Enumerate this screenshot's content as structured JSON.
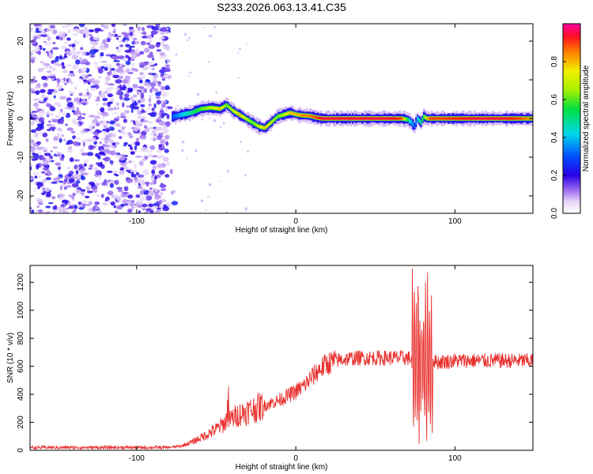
{
  "title": "S233.2026.063.13.41.C35",
  "charts": [
    {
      "type": "heatmap",
      "name": "spectrogram",
      "xlabel": "Height of straight line (km)",
      "ylabel": "Frequency (Hz)",
      "xlim": [
        -167,
        149
      ],
      "ylim": [
        -24.5,
        24.5
      ],
      "xticks": [
        "-100",
        "0",
        "100"
      ],
      "yticks": [
        "20",
        "10",
        "0",
        "-10",
        "-20"
      ],
      "yticks_values": [
        20,
        10,
        0,
        -10,
        -20
      ],
      "xticks_values": [
        -100,
        0,
        100
      ],
      "colorbar": {
        "label": "Normalized spectral amplitude",
        "range": [
          0,
          1
        ],
        "ticks": [
          "0.0",
          "0.2",
          "0.4",
          "0.6",
          "0.8"
        ],
        "ticks_values": [
          0,
          0.2,
          0.4,
          0.6,
          0.8
        ]
      },
      "noise_region_x": [
        -167,
        -80
      ],
      "ridge": {
        "x": [
          -78,
          -72,
          -66,
          -60,
          -54,
          -48,
          -44,
          -40,
          -36,
          -32,
          -28,
          -24,
          -20,
          -16,
          -12,
          -8,
          -4,
          0,
          4,
          8,
          12,
          16,
          20,
          30,
          40,
          50,
          60,
          66,
          70,
          72,
          74,
          76,
          78,
          80,
          82,
          84,
          90,
          100,
          110,
          120,
          130,
          140,
          149
        ],
        "y": [
          0.5,
          1.0,
          1.5,
          2.5,
          2.8,
          2.5,
          3.5,
          2.0,
          1.0,
          0.0,
          -1.0,
          -2.0,
          -2.5,
          -1.0,
          0.5,
          1.0,
          1.5,
          1.0,
          0.8,
          0.7,
          0.3,
          0.0,
          0.0,
          0.0,
          0.0,
          0.0,
          0.0,
          0.0,
          -0.3,
          -1.0,
          -2.0,
          0.0,
          -1.0,
          0.5,
          0.0,
          0.0,
          0.0,
          0.0,
          0.0,
          0.0,
          0.0,
          0.0,
          0.0
        ],
        "amp": [
          0.3,
          0.4,
          0.5,
          0.6,
          0.7,
          0.8,
          0.6,
          0.7,
          0.8,
          0.7,
          0.6,
          0.7,
          0.8,
          0.7,
          0.6,
          0.7,
          0.8,
          0.8,
          0.85,
          0.85,
          0.9,
          0.95,
          0.95,
          0.95,
          0.95,
          0.95,
          0.95,
          0.9,
          0.5,
          0.4,
          0.3,
          0.4,
          0.5,
          0.6,
          0.8,
          0.9,
          0.9,
          0.92,
          0.95,
          0.95,
          0.95,
          0.9,
          0.8
        ]
      }
    },
    {
      "type": "line",
      "name": "snr",
      "xlabel": "Height of straight line (km)",
      "ylabel": "SNR (10 * v/v)",
      "xlim": [
        -167,
        149
      ],
      "ylim": [
        0,
        1320
      ],
      "xticks": [
        "-100",
        "0",
        "100"
      ],
      "xticks_values": [
        -100,
        0,
        100
      ],
      "yticks": [
        "0",
        "200",
        "400",
        "600",
        "800",
        "1000",
        "1200"
      ],
      "yticks_values": [
        0,
        200,
        400,
        600,
        800,
        1000,
        1200
      ],
      "line_color": "#e8302d",
      "envelope_x": [
        -167,
        -80,
        -72,
        -65,
        -58,
        -50,
        -44,
        -40,
        -35,
        -30,
        -25,
        -20,
        -15,
        -10,
        -5,
        0,
        5,
        10,
        15,
        20,
        25,
        30,
        40,
        50,
        60,
        70,
        73,
        80,
        86,
        90,
        100,
        110,
        120,
        130,
        140,
        149
      ],
      "envelope_y": [
        20,
        20,
        30,
        60,
        100,
        150,
        200,
        230,
        260,
        280,
        300,
        320,
        340,
        360,
        390,
        420,
        460,
        520,
        580,
        620,
        640,
        650,
        660,
        660,
        660,
        660,
        650,
        640,
        640,
        630,
        640,
        640,
        640,
        640,
        640,
        640
      ],
      "burst_x_range": [
        73,
        86
      ],
      "burst_peaks": [
        1320,
        1310,
        1000,
        1100
      ],
      "burst_min": 40
    }
  ]
}
